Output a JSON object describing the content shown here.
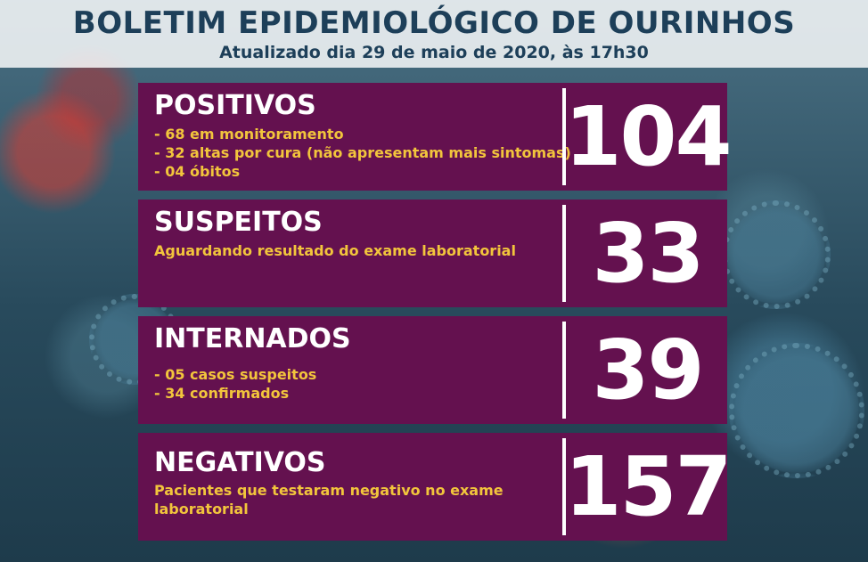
{
  "header": {
    "title": "BOLETIM EPIDEMIOLÓGICO DE OURINHOS",
    "subtitle": "Atualizado dia 29 de maio de 2020, às 17h30"
  },
  "colors": {
    "card_background": "#64114f",
    "detail_text": "#f2c53c",
    "title_text": "#1d3f59"
  },
  "cards": [
    {
      "label": "POSITIVOS",
      "details": [
        "- 68 em monitoramento",
        "- 32 altas por cura (não apresentam mais sintomas)",
        "- 04 óbitos"
      ],
      "value": "104"
    },
    {
      "label": "SUSPEITOS",
      "details": [
        "Aguardando resultado do exame laboratorial"
      ],
      "value": "33"
    },
    {
      "label": "INTERNADOS",
      "details": [
        "- 05 casos suspeitos",
        "- 34 confirmados"
      ],
      "value": "39"
    },
    {
      "label": "NEGATIVOS",
      "details": [
        "Pacientes que testaram negativo no exame",
        "laboratorial"
      ],
      "value": "157"
    }
  ]
}
